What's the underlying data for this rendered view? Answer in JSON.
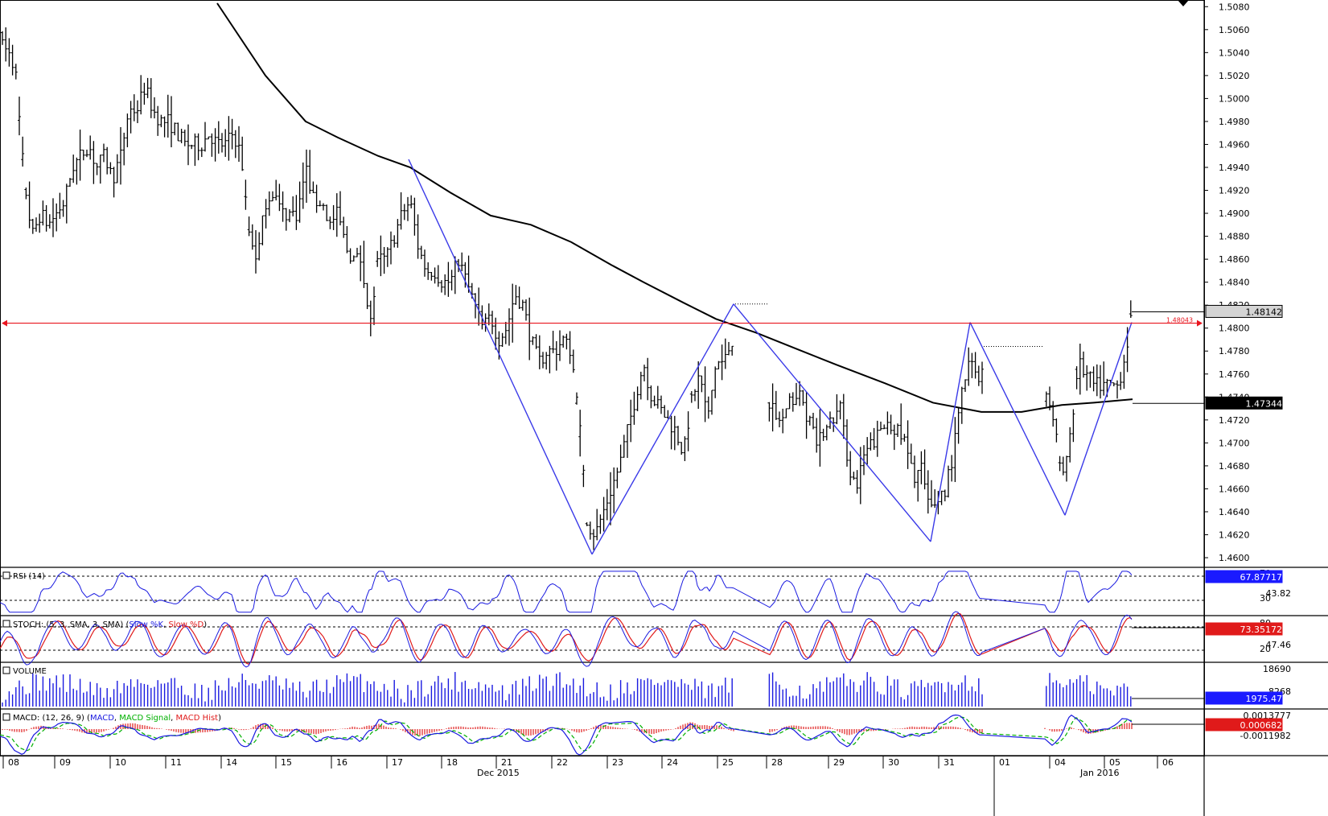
{
  "chart_data": {
    "type": "candlestick",
    "title": "",
    "price_axis": {
      "ticks": [
        "1.5080",
        "1.5060",
        "1.5040",
        "1.5020",
        "1.5000",
        "1.4980",
        "1.4960",
        "1.4940",
        "1.4920",
        "1.4900",
        "1.4880",
        "1.4860",
        "1.4840",
        "1.4820",
        "1.4800",
        "1.4780",
        "1.4760",
        "1.4740",
        "1.4720",
        "1.4700",
        "1.4680",
        "1.4660",
        "1.4640",
        "1.4620",
        "1.4600"
      ],
      "ylim": [
        1.4593,
        1.5083
      ]
    },
    "labels": {
      "current_price": "1.48142",
      "horizontal_level": "1.48043",
      "moving_average": "1.47344"
    },
    "price_path": [
      [
        0,
        1.506
      ],
      [
        10,
        1.504
      ],
      [
        20,
        1.502
      ],
      [
        30,
        1.493
      ],
      [
        40,
        1.488
      ],
      [
        50,
        1.49
      ],
      [
        60,
        1.489
      ],
      [
        70,
        1.49
      ],
      [
        80,
        1.491
      ],
      [
        90,
        1.494
      ],
      [
        100,
        1.495
      ],
      [
        110,
        1.496
      ],
      [
        120,
        1.494
      ],
      [
        130,
        1.495
      ],
      [
        140,
        1.493
      ],
      [
        150,
        1.495
      ],
      [
        160,
        1.499
      ],
      [
        170,
        1.499
      ],
      [
        180,
        1.501
      ],
      [
        190,
        1.499
      ],
      [
        200,
        1.498
      ],
      [
        210,
        1.498
      ],
      [
        220,
        1.497
      ],
      [
        230,
        1.496
      ],
      [
        240,
        1.496
      ],
      [
        250,
        1.496
      ],
      [
        260,
        1.497
      ],
      [
        270,
        1.496
      ],
      [
        280,
        1.496
      ],
      [
        290,
        1.497
      ],
      [
        300,
        1.495
      ],
      [
        310,
        1.488
      ],
      [
        320,
        1.486
      ],
      [
        330,
        1.491
      ],
      [
        340,
        1.492
      ],
      [
        350,
        1.49
      ],
      [
        360,
        1.49
      ],
      [
        370,
        1.49
      ],
      [
        380,
        1.494
      ],
      [
        390,
        1.491
      ],
      [
        400,
        1.491
      ],
      [
        410,
        1.489
      ],
      [
        420,
        1.49
      ],
      [
        430,
        1.487
      ],
      [
        440,
        1.486
      ],
      [
        450,
        1.486
      ],
      [
        460,
        1.48
      ],
      [
        470,
        1.486
      ],
      [
        480,
        1.486
      ],
      [
        490,
        1.488
      ],
      [
        500,
        1.49
      ],
      [
        510,
        1.491
      ],
      [
        520,
        1.487
      ],
      [
        530,
        1.485
      ],
      [
        540,
        1.485
      ],
      [
        550,
        1.484
      ],
      [
        560,
        1.484
      ],
      [
        570,
        1.486
      ],
      [
        580,
        1.484
      ],
      [
        590,
        1.482
      ],
      [
        600,
        1.48
      ],
      [
        610,
        1.481
      ],
      [
        620,
        1.479
      ],
      [
        630,
        1.48
      ],
      [
        640,
        1.483
      ],
      [
        650,
        1.482
      ],
      [
        660,
        1.479
      ],
      [
        670,
        1.477
      ],
      [
        680,
        1.478
      ],
      [
        690,
        1.478
      ],
      [
        700,
        1.479
      ],
      [
        710,
        1.478
      ],
      [
        720,
        1.472
      ],
      [
        730,
        1.463
      ],
      [
        740,
        1.462
      ],
      [
        750,
        1.464
      ],
      [
        760,
        1.466
      ],
      [
        770,
        1.468
      ],
      [
        780,
        1.471
      ],
      [
        790,
        1.474
      ],
      [
        800,
        1.477
      ],
      [
        810,
        1.474
      ],
      [
        820,
        1.473
      ],
      [
        830,
        1.472
      ],
      [
        840,
        1.471
      ],
      [
        850,
        1.469
      ],
      [
        860,
        1.474
      ],
      [
        870,
        1.476
      ],
      [
        880,
        1.472
      ],
      [
        890,
        1.477
      ],
      [
        900,
        1.477
      ],
      [
        910,
        1.479
      ],
      [
        955,
        1.474
      ],
      [
        965,
        1.472
      ],
      [
        975,
        1.472
      ],
      [
        985,
        1.474
      ],
      [
        995,
        1.474
      ],
      [
        1005,
        1.472
      ],
      [
        1015,
        1.47
      ],
      [
        1025,
        1.471
      ],
      [
        1035,
        1.472
      ],
      [
        1045,
        1.473
      ],
      [
        1055,
        1.468
      ],
      [
        1065,
        1.466
      ],
      [
        1075,
        1.469
      ],
      [
        1085,
        1.47
      ],
      [
        1095,
        1.471
      ],
      [
        1105,
        1.472
      ],
      [
        1115,
        1.471
      ],
      [
        1125,
        1.47
      ],
      [
        1135,
        1.467
      ],
      [
        1145,
        1.468
      ],
      [
        1155,
        1.464
      ],
      [
        1165,
        1.465
      ],
      [
        1175,
        1.466
      ],
      [
        1185,
        1.469
      ],
      [
        1195,
        1.474
      ],
      [
        1205,
        1.477
      ],
      [
        1215,
        1.476
      ],
      [
        1222,
        1.476
      ],
      [
        1300,
        1.474
      ],
      [
        1310,
        1.472
      ],
      [
        1320,
        1.467
      ],
      [
        1330,
        1.47
      ],
      [
        1340,
        1.477
      ],
      [
        1350,
        1.476
      ],
      [
        1360,
        1.475
      ],
      [
        1370,
        1.475
      ],
      [
        1380,
        1.475
      ],
      [
        1390,
        1.475
      ],
      [
        1400,
        1.478
      ],
      [
        1407,
        1.4815
      ]
    ],
    "moving_average_path": [
      [
        270,
        1.5083
      ],
      [
        330,
        1.502
      ],
      [
        380,
        1.498
      ],
      [
        420,
        1.4966
      ],
      [
        470,
        1.495
      ],
      [
        510,
        1.494
      ],
      [
        560,
        1.4918
      ],
      [
        610,
        1.4898
      ],
      [
        660,
        1.489
      ],
      [
        710,
        1.4875
      ],
      [
        760,
        1.4855
      ],
      [
        800,
        1.484
      ],
      [
        850,
        1.4822
      ],
      [
        890,
        1.4808
      ],
      [
        940,
        1.4796
      ],
      [
        990,
        1.4782
      ],
      [
        1040,
        1.4768
      ],
      [
        1100,
        1.4752
      ],
      [
        1160,
        1.4735
      ],
      [
        1220,
        1.4727
      ],
      [
        1270,
        1.4727
      ],
      [
        1320,
        1.4733
      ],
      [
        1360,
        1.4735
      ],
      [
        1408,
        1.4738
      ]
    ],
    "pattern_lines": [
      [
        [
          508,
          1.4947
        ],
        [
          736,
          1.4603
        ]
      ],
      [
        [
          736,
          1.4603
        ],
        [
          912,
          1.4821
        ]
      ],
      [
        [
          912,
          1.4821
        ],
        [
          1157,
          1.4614
        ]
      ],
      [
        [
          1157,
          1.4614
        ],
        [
          1206,
          1.4805
        ]
      ],
      [
        [
          1206,
          1.4805
        ],
        [
          1324,
          1.4637
        ]
      ],
      [
        [
          1324,
          1.4637
        ],
        [
          1407,
          1.4805
        ]
      ]
    ],
    "panels": [
      {
        "name": "rsi",
        "label": "RSI (14)",
        "ticks": [
          "70",
          "43.82",
          "30"
        ],
        "value": "67.87717",
        "value_color": "#1a1aff"
      },
      {
        "name": "stoch",
        "label_parts": [
          [
            "STOCH: (5, 3, SMA, 3, SMA) (",
            "#000000"
          ],
          [
            "Slow %K",
            "#1a1ae0"
          ],
          [
            ", ",
            "#000000"
          ],
          [
            "Slow %D",
            "#e01a1a"
          ],
          [
            ")",
            "#000000"
          ]
        ],
        "ticks": [
          "80",
          "47.46",
          "20"
        ],
        "value": "73.35172",
        "value_color": "#e01a1a"
      },
      {
        "name": "volume",
        "label": "VOLUME",
        "ticks": [
          "18690",
          "8268"
        ],
        "value": "1975.47",
        "value_color": "#1a1aff"
      },
      {
        "name": "macd",
        "label_parts": [
          [
            "MACD: (12, 26, 9) (",
            "#000000"
          ],
          [
            "MACD",
            "#1a1ae0"
          ],
          [
            ", ",
            "#000000"
          ],
          [
            "MACD Signal",
            "#00b000"
          ],
          [
            ", ",
            "#000000"
          ],
          [
            "MACD Hist",
            "#e01a1a"
          ],
          [
            ")",
            "#000000"
          ]
        ],
        "ticks": [
          "0.0013777",
          "-0.0011982"
        ],
        "value": "0.000682",
        "value_color": "#e01a1a"
      }
    ],
    "x_axis": {
      "day_labels": [
        "08",
        "09",
        "10",
        "11",
        "14",
        "15",
        "16",
        "17",
        "18",
        "21",
        "22",
        "23",
        "24",
        "25",
        "28",
        "29",
        "30",
        "31",
        "01",
        "04",
        "05",
        "06"
      ],
      "month_labels": [
        "Dec 2015",
        "Jan 2016"
      ]
    }
  },
  "colors": {
    "candles": "#000000",
    "pattern": "#3a3ae8",
    "level": "#e8141e",
    "rsi": "#1a1ae0",
    "stoch_k": "#1a1ae0",
    "stoch_d": "#e01a1a",
    "volume": "#1a1ae0",
    "macd_signal": "#00b000",
    "macd_hist": "#e01a1a"
  }
}
